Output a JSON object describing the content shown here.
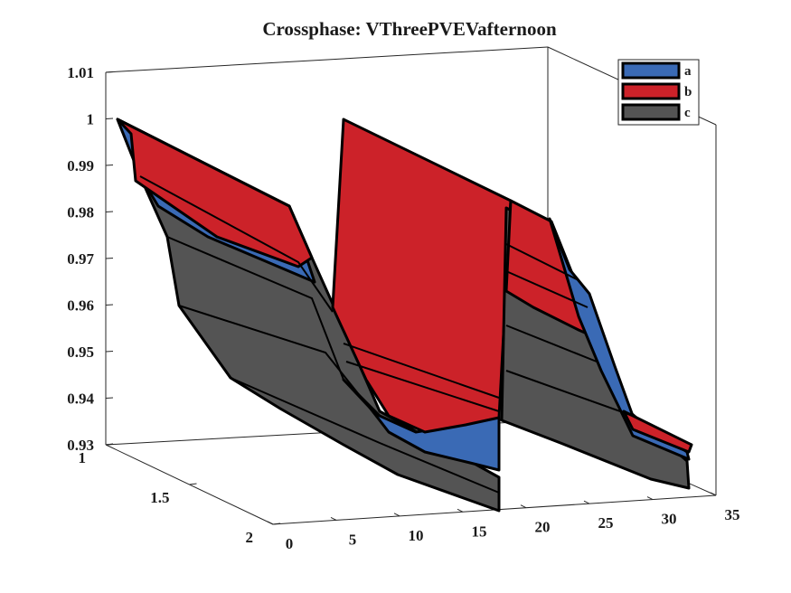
{
  "chart_data": {
    "type": "surface3d",
    "title": "Crossphase: VThreePVEVafternoon",
    "xlabel": "",
    "ylabel": "",
    "zlabel": "",
    "x_ticks": [
      "0",
      "5",
      "10",
      "15",
      "20",
      "25",
      "30",
      "35"
    ],
    "y_ticks": [
      "1",
      "1.5",
      "2"
    ],
    "z_ticks": [
      "0.93",
      "0.94",
      "0.95",
      "0.96",
      "0.97",
      "0.98",
      "0.99",
      "1",
      "1.01"
    ],
    "xlim": [
      0,
      35
    ],
    "ylim": [
      1,
      2
    ],
    "zlim": [
      0.93,
      1.01
    ],
    "legend_position": "top-right",
    "series": [
      {
        "name": "a",
        "color": "#3a6ab5",
        "x": [
          0,
          2,
          8,
          16,
          18,
          26,
          32
        ],
        "z": [
          0.999,
          0.987,
          0.962,
          0.936,
          0.982,
          0.958,
          0.933
        ]
      },
      {
        "name": "b",
        "color": "#cc2229",
        "x": [
          0,
          2,
          8,
          16,
          18,
          26,
          32
        ],
        "z": [
          0.999,
          0.995,
          0.977,
          0.999,
          0.985,
          0.962,
          0.938
        ]
      },
      {
        "name": "c",
        "color": "#545454",
        "x": [
          0,
          2,
          8,
          16,
          18,
          26,
          32
        ],
        "z": [
          0.999,
          0.984,
          0.958,
          0.93,
          0.97,
          0.95,
          0.928
        ]
      }
    ]
  }
}
